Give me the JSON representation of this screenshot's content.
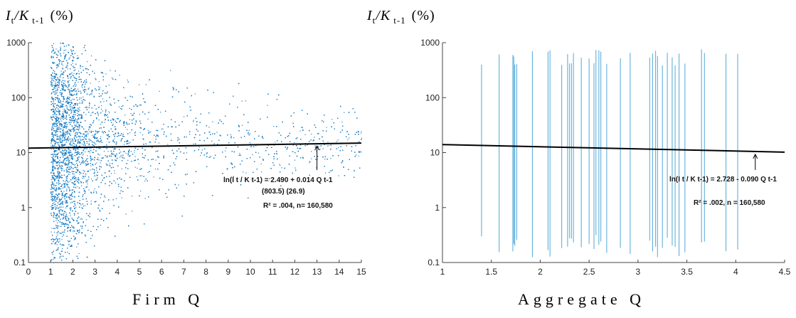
{
  "colors": {
    "scatter": "#1f7fc4",
    "vlines": "#5fb0dc",
    "fit_line": "#000000",
    "axes": "#444444"
  },
  "chart_data": [
    {
      "type": "scatter",
      "ylabel": "I_t/K_t-1 (%)",
      "xlabel": "Firm Q",
      "yscale": "log",
      "xlim": [
        0,
        15
      ],
      "ylim": [
        0.1,
        1000
      ],
      "xticks": [
        "0",
        "1",
        "2",
        "3",
        "4",
        "5",
        "6",
        "7",
        "8",
        "9",
        "10",
        "11",
        "12",
        "13",
        "14",
        "15"
      ],
      "yticks": [
        "0.1",
        "1",
        "10",
        "100",
        "1000"
      ],
      "grid": false,
      "fit": {
        "intercept": 2.49,
        "slope": 0.014
      },
      "annotation": {
        "line1": "ln(I t / K t-1) = 2.490 + 0.014 Q t-1",
        "line2": "(803.5)    (26.9)",
        "line3": "R² = .004,  n= 160,580",
        "arrow_x": 13
      }
    },
    {
      "type": "scatter",
      "ylabel": "I_t/K_t-1 (%)",
      "xlabel": "Aggregate Q",
      "yscale": "log",
      "xlim": [
        1,
        4.5
      ],
      "ylim": [
        0.1,
        1000
      ],
      "xticks": [
        "1",
        "1.5",
        "2",
        "2.5",
        "3",
        "3.5",
        "4",
        "4.5"
      ],
      "yticks": [
        "0.1",
        "1",
        "10",
        "100",
        "1000"
      ],
      "grid": false,
      "fit": {
        "intercept": 2.728,
        "slope": -0.09
      },
      "aggregate_q_values": [
        1.4,
        1.58,
        1.72,
        1.73,
        1.74,
        1.76,
        1.92,
        2.08,
        2.1,
        2.22,
        2.28,
        2.3,
        2.32,
        2.34,
        2.42,
        2.5,
        2.55,
        2.57,
        2.6,
        2.62,
        2.68,
        2.82,
        2.92,
        3.12,
        3.15,
        3.18,
        3.2,
        3.25,
        3.3,
        3.35,
        3.38,
        3.42,
        3.48,
        3.65,
        3.68,
        3.9,
        4.02
      ],
      "annotation": {
        "line1": "ln(I t / K t-1) = 2.728 - 0.090 Q t-1",
        "line3": "R² = .002, n = 160,580",
        "arrow_x": 4.2
      }
    }
  ],
  "labels": {
    "ylabel_main": "I",
    "ylabel_sub1": "t",
    "ylabel_mid": "/K",
    "ylabel_sub2": "t-1",
    "ylabel_tail": "(%)",
    "left_xtitle": "Firm Q",
    "right_xtitle": "Aggregate Q",
    "left_eq_1": "ln(I t / K t-1) = 2.490 + 0.014 Q t-1",
    "left_eq_2": "(803.5)    (26.9)",
    "left_eq_3": "R² = .004,  n= 160,580",
    "right_eq_1": "ln(I t / K t-1) = 2.728 - 0.090 Q t-1",
    "right_eq_3": "R² = .002, n = 160,580"
  }
}
